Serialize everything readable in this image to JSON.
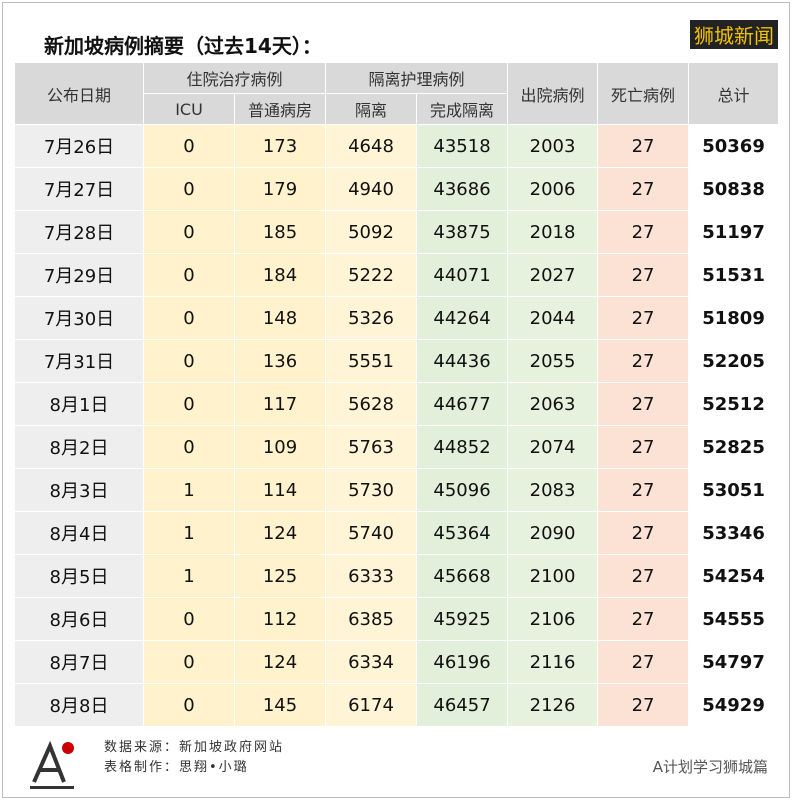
{
  "header": {
    "title": "新加坡病例摘要（过去14天）：",
    "badge": "狮城新闻"
  },
  "table": {
    "head_top": [
      "公布日期",
      "住院治疗病例",
      "隔离护理病例",
      "出院病例",
      "死亡病例",
      "总计"
    ],
    "head_sub": [
      "ICU",
      "普通病房",
      "隔离",
      "完成隔离"
    ],
    "rows": [
      [
        "7月26日",
        0,
        173,
        4648,
        43518,
        2003,
        27,
        50369
      ],
      [
        "7月27日",
        0,
        179,
        4940,
        43686,
        2006,
        27,
        50838
      ],
      [
        "7月28日",
        0,
        185,
        5092,
        43875,
        2018,
        27,
        51197
      ],
      [
        "7月29日",
        0,
        184,
        5222,
        44071,
        2027,
        27,
        51531
      ],
      [
        "7月30日",
        0,
        148,
        5326,
        44264,
        2044,
        27,
        51809
      ],
      [
        "7月31日",
        0,
        136,
        5551,
        44436,
        2055,
        27,
        52205
      ],
      [
        "8月1日",
        0,
        117,
        5628,
        44677,
        2063,
        27,
        52512
      ],
      [
        "8月2日",
        0,
        109,
        5763,
        44852,
        2074,
        27,
        52825
      ],
      [
        "8月3日",
        1,
        114,
        5730,
        45096,
        2083,
        27,
        53051
      ],
      [
        "8月4日",
        1,
        124,
        5740,
        45364,
        2090,
        27,
        53346
      ],
      [
        "8月5日",
        1,
        125,
        6333,
        45668,
        2100,
        27,
        54254
      ],
      [
        "8月6日",
        0,
        112,
        6385,
        45925,
        2106,
        27,
        54555
      ],
      [
        "8月7日",
        0,
        124,
        6334,
        46196,
        2116,
        27,
        54797
      ],
      [
        "8月8日",
        0,
        145,
        6174,
        46457,
        2126,
        27,
        54929
      ]
    ]
  },
  "footer": {
    "source_label": "数据来源：",
    "source": "新加坡政府网站",
    "maker_label": "表格制作：",
    "maker": "思翔•小璐",
    "watermark": "A计划学习狮城篇"
  }
}
